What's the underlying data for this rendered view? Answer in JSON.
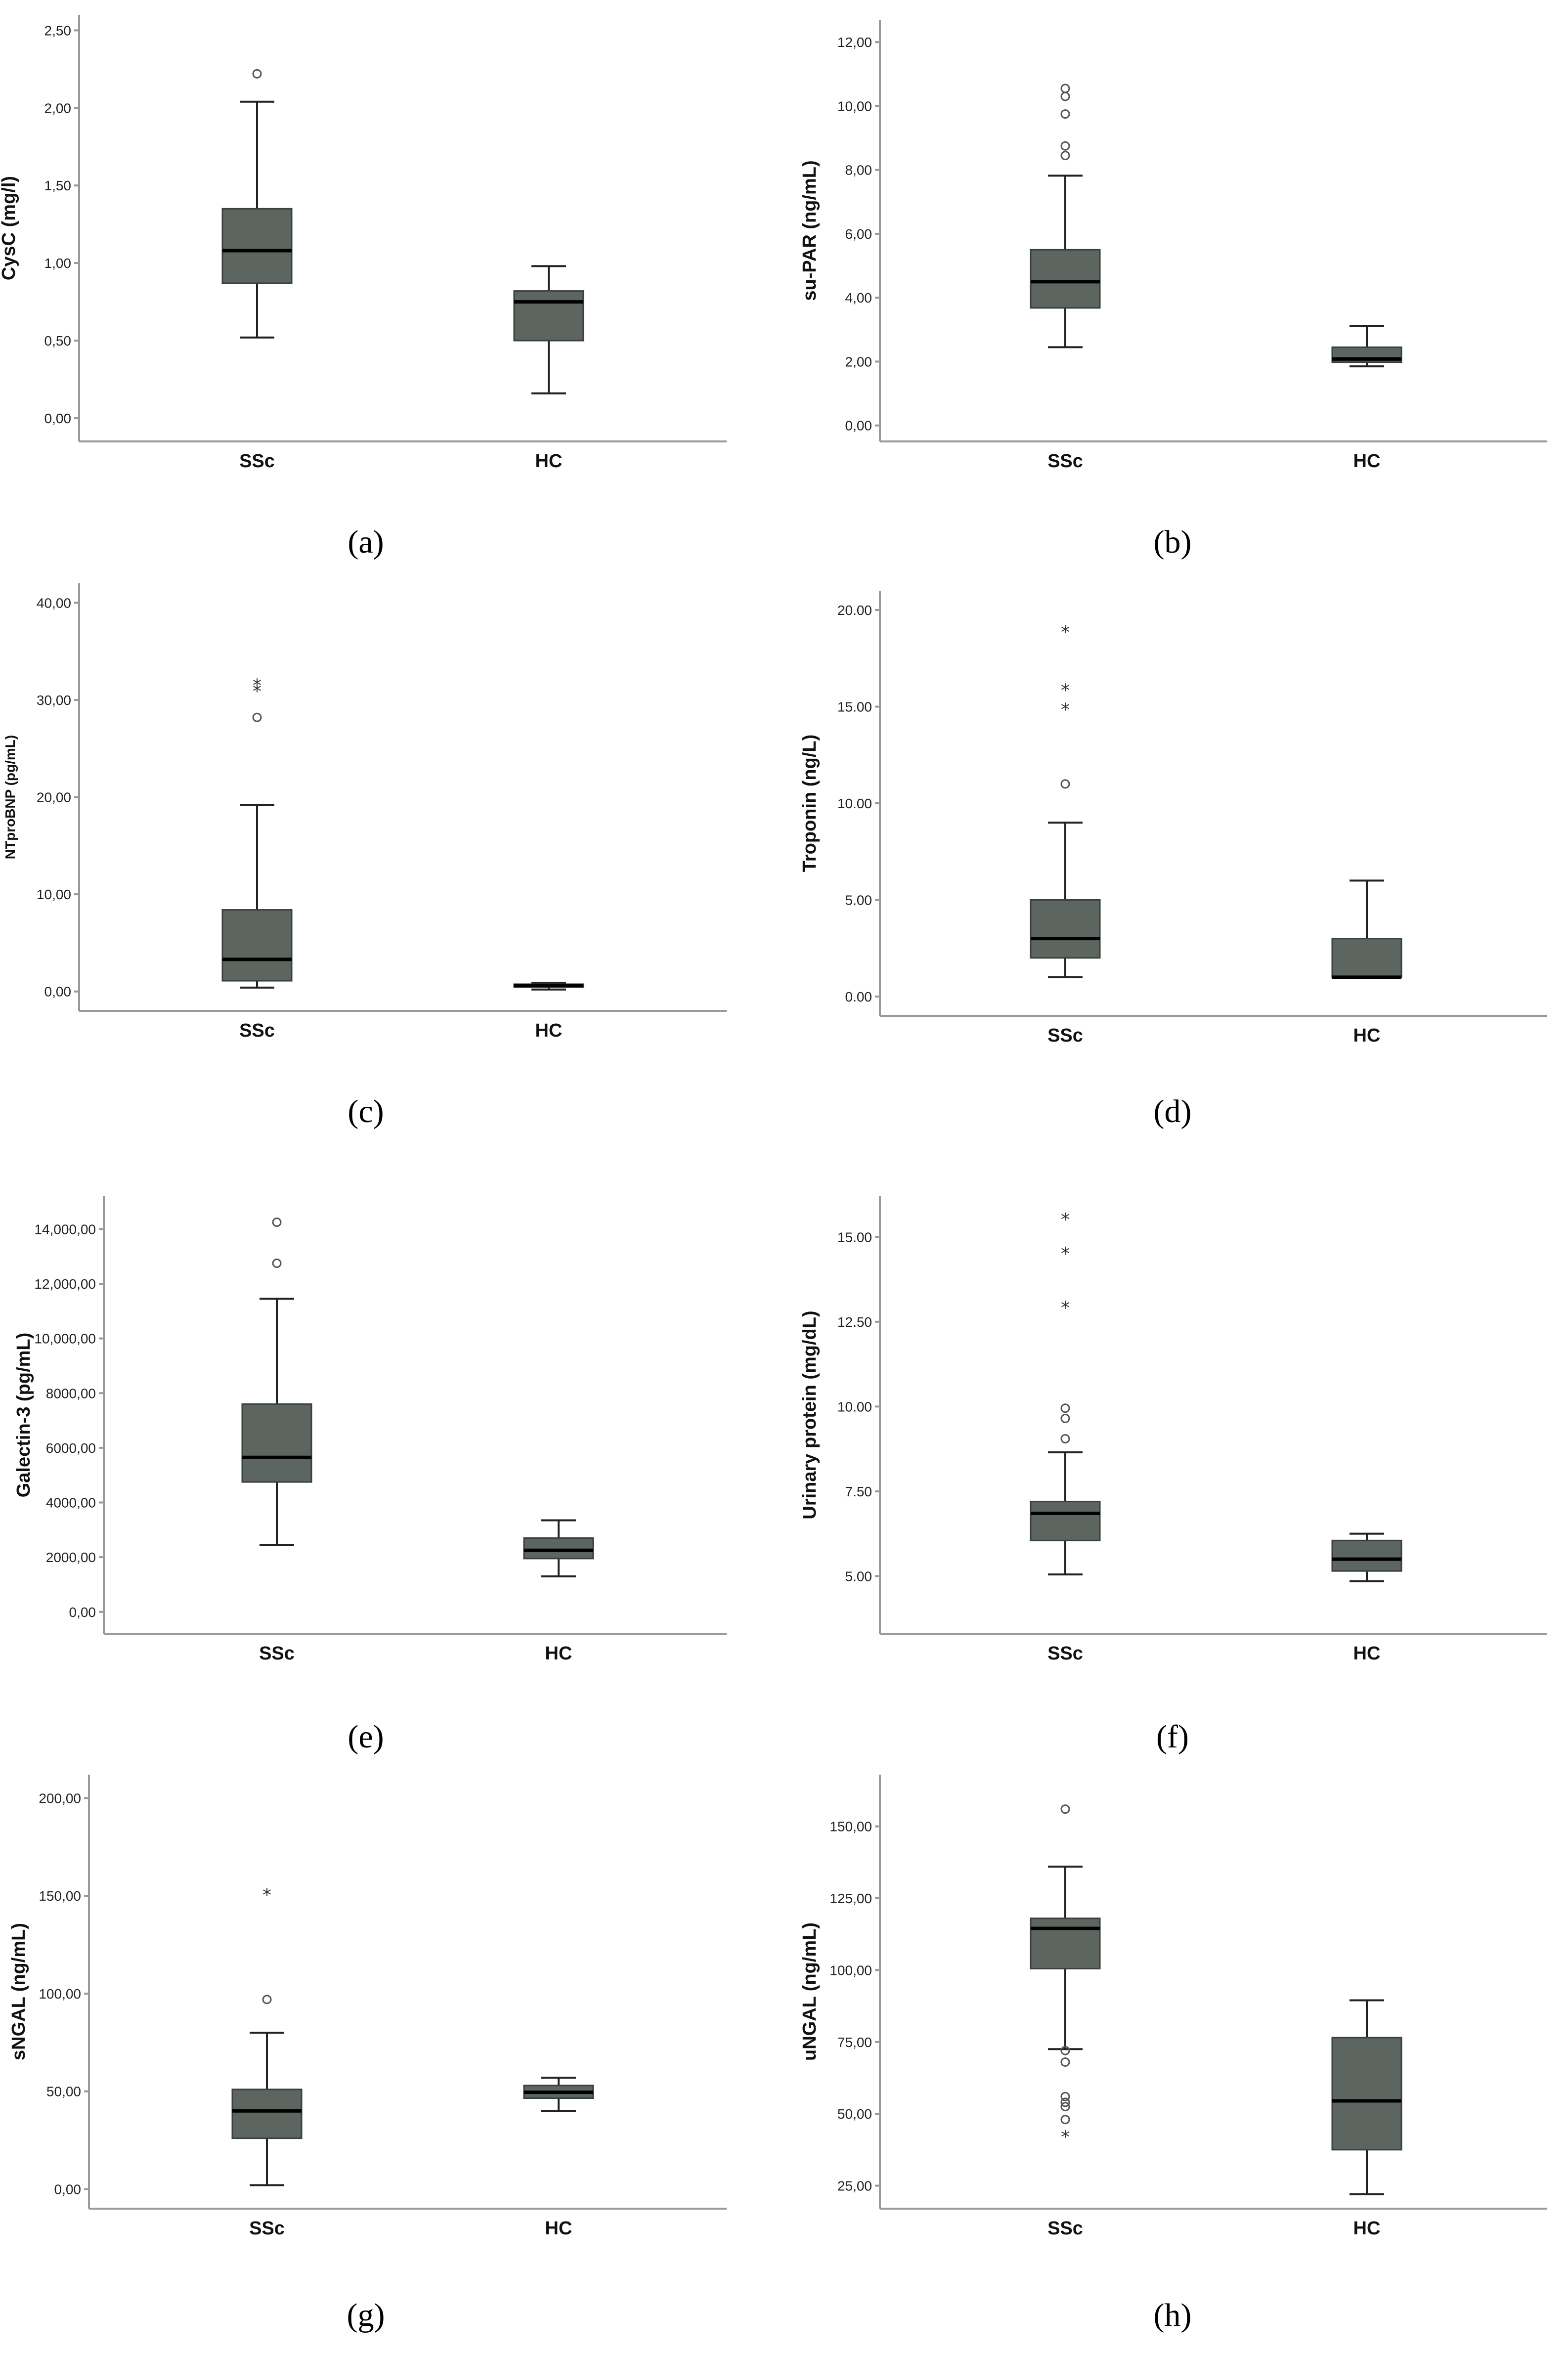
{
  "chart_data": [
    {
      "id": "a",
      "label_text": "(a)",
      "label_letter": "a",
      "type": "boxplot",
      "ylabel": "CysC (mg/l)",
      "yticks": [
        "0,00",
        "0,50",
        "1,00",
        "1,50",
        "2,00",
        "2,50"
      ],
      "ylim": [
        -0.15,
        2.6
      ],
      "categories": [
        "SSc",
        "HC"
      ],
      "series": [
        {
          "name": "SSc",
          "min": 0.52,
          "q1": 0.87,
          "median": 1.08,
          "q3": 1.35,
          "max": 2.04,
          "outliers": [
            2.22
          ],
          "extremes": []
        },
        {
          "name": "HC",
          "min": 0.16,
          "q1": 0.5,
          "median": 0.75,
          "q3": 0.82,
          "max": 0.98,
          "outliers": [],
          "extremes": []
        }
      ]
    },
    {
      "id": "b",
      "label_text": "(b)",
      "label_letter": "b",
      "type": "boxplot",
      "ylabel": "su-PAR (ng/mL)",
      "yticks": [
        "0,00",
        "2,00",
        "4,00",
        "6,00",
        "8,00",
        "10,00",
        "12,00"
      ],
      "ylim": [
        -0.5,
        12.7
      ],
      "categories": [
        "SSc",
        "HC"
      ],
      "series": [
        {
          "name": "SSc",
          "min": 2.45,
          "q1": 3.68,
          "median": 4.5,
          "q3": 5.5,
          "max": 7.82,
          "outliers": [
            8.45,
            8.75,
            9.75,
            10.3,
            10.55
          ],
          "extremes": []
        },
        {
          "name": "HC",
          "min": 1.85,
          "q1": 1.98,
          "median": 2.08,
          "q3": 2.45,
          "max": 3.12,
          "outliers": [],
          "extremes": []
        }
      ]
    },
    {
      "id": "c",
      "label_text": "(c)",
      "label_letter": "c",
      "type": "boxplot",
      "ylabel": "NTproBNP (pg/mL)",
      "ylabel_small": true,
      "yticks": [
        "0,00",
        "10,00",
        "20,00",
        "30,00",
        "40,00"
      ],
      "ylim": [
        -2,
        42
      ],
      "categories": [
        "SSc",
        "HC"
      ],
      "series": [
        {
          "name": "SSc",
          "min": 0.4,
          "q1": 1.1,
          "median": 3.3,
          "q3": 8.4,
          "max": 19.2,
          "outliers": [
            28.2
          ],
          "extremes": [
            31.2,
            31.8
          ]
        },
        {
          "name": "HC",
          "min": 0.2,
          "q1": 0.45,
          "median": 0.6,
          "q3": 0.75,
          "max": 0.9,
          "outliers": [],
          "extremes": []
        }
      ]
    },
    {
      "id": "d",
      "label_text": "(d)",
      "label_letter": "d",
      "type": "boxplot",
      "ylabel": "Troponin (ng/L)",
      "yticks": [
        "0.00",
        "5.00",
        "10.00",
        "15.00",
        "20.00"
      ],
      "ylim": [
        -1,
        21
      ],
      "categories": [
        "SSc",
        "HC"
      ],
      "series": [
        {
          "name": "SSc",
          "min": 1.0,
          "q1": 2.0,
          "median": 3.0,
          "q3": 5.0,
          "max": 9.0,
          "outliers": [
            11.0
          ],
          "extremes": [
            15.0,
            16.0,
            19.0
          ]
        },
        {
          "name": "HC",
          "min": 1.0,
          "q1": 1.0,
          "median": 1.0,
          "q3": 3.0,
          "max": 6.0,
          "outliers": [],
          "extremes": []
        }
      ]
    },
    {
      "id": "e",
      "label_text": "(e)",
      "label_letter": "e",
      "type": "boxplot",
      "ylabel": "Galectin-3 (pg/mL)",
      "yticks": [
        "0,00",
        "2000,00",
        "4000,00",
        "6000,00",
        "8000,00",
        "10,000,00",
        "12,000,00",
        "14,000,00"
      ],
      "ytick_values": [
        0,
        2000,
        4000,
        6000,
        8000,
        10000,
        12000,
        14000
      ],
      "ylim": [
        -800,
        15200
      ],
      "categories": [
        "SSc",
        "HC"
      ],
      "series": [
        {
          "name": "SSc",
          "min": 2450,
          "q1": 4750,
          "median": 5650,
          "q3": 7600,
          "max": 11450,
          "outliers": [
            12750,
            14250
          ],
          "extremes": []
        },
        {
          "name": "HC",
          "min": 1300,
          "q1": 1950,
          "median": 2250,
          "q3": 2700,
          "max": 3350,
          "outliers": [],
          "extremes": []
        }
      ]
    },
    {
      "id": "f",
      "label_text": "(f)",
      "label_letter": "f",
      "type": "boxplot",
      "ylabel": "Urinary protein (mg/dL)",
      "yticks": [
        "5.00",
        "7.50",
        "10.00",
        "12.50",
        "15.00"
      ],
      "ylim": [
        3.3,
        16.2
      ],
      "categories": [
        "SSc",
        "HC"
      ],
      "series": [
        {
          "name": "SSc",
          "min": 5.05,
          "q1": 6.05,
          "median": 6.85,
          "q3": 7.2,
          "max": 8.65,
          "outliers": [
            9.05,
            9.65,
            9.95
          ],
          "extremes": [
            13.0,
            14.6,
            15.6
          ]
        },
        {
          "name": "HC",
          "min": 4.85,
          "q1": 5.15,
          "median": 5.5,
          "q3": 6.05,
          "max": 6.25,
          "outliers": [],
          "extremes": []
        }
      ]
    },
    {
      "id": "g",
      "label_text": "(g)",
      "label_letter": "g",
      "type": "boxplot",
      "ylabel": "sNGAL (ng/mL)",
      "yticks": [
        "0,00",
        "50,00",
        "100,00",
        "150,00",
        "200,00"
      ],
      "ylim": [
        -10,
        212
      ],
      "categories": [
        "SSc",
        "HC"
      ],
      "series": [
        {
          "name": "SSc",
          "min": 2.0,
          "q1": 26.0,
          "median": 40.0,
          "q3": 51.0,
          "max": 80.0,
          "outliers": [
            97.0
          ],
          "extremes": [
            152.0
          ]
        },
        {
          "name": "HC",
          "min": 40.0,
          "q1": 46.5,
          "median": 49.5,
          "q3": 53.0,
          "max": 57.0,
          "outliers": [],
          "extremes": []
        }
      ]
    },
    {
      "id": "h",
      "label_text": "(h)",
      "label_letter": "h",
      "type": "boxplot",
      "ylabel": "uNGAL (ng/mL)",
      "yticks": [
        "25,00",
        "50,00",
        "75,00",
        "100,00",
        "125,00",
        "150,00"
      ],
      "ytick_values": [
        25,
        50,
        75,
        100,
        125,
        150
      ],
      "ylim": [
        17,
        168
      ],
      "categories": [
        "SSc",
        "HC"
      ],
      "series": [
        {
          "name": "SSc",
          "min": 72.5,
          "q1": 100.5,
          "median": 114.5,
          "q3": 118.0,
          "max": 136.0,
          "outliers": [
            156.0,
            72.0,
            68.0,
            56.0,
            54.0,
            52.5,
            48.0
          ],
          "extremes": [
            43.0
          ]
        },
        {
          "name": "HC",
          "min": 22.0,
          "q1": 37.5,
          "median": 54.5,
          "q3": 76.5,
          "max": 89.5,
          "outliers": [],
          "extremes": []
        }
      ]
    }
  ]
}
